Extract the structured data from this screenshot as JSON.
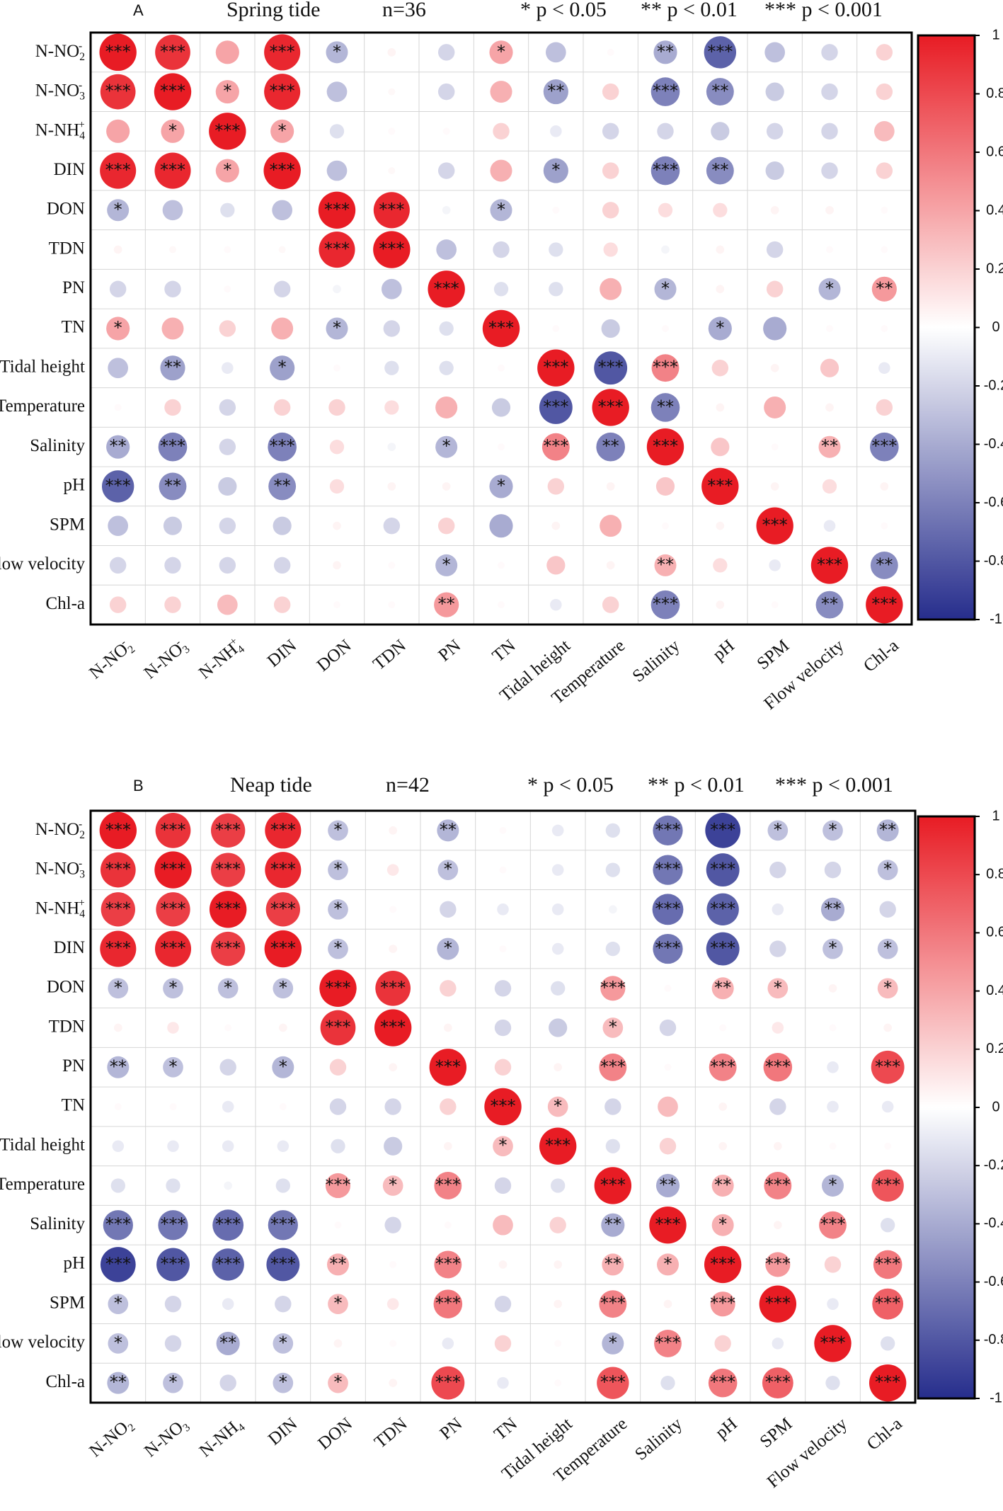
{
  "chart_data": [
    {
      "type": "heatmap",
      "panel": "A",
      "title": "Spring tide",
      "n_label": "n=36",
      "significance_legend": [
        "* p < 0.05",
        "** p < 0.01",
        "*** p < 0.001"
      ],
      "variables": [
        "N-NO2-",
        "N-NO3-",
        "N-NH4+",
        "DIN",
        "DON",
        "TDN",
        "PN",
        "TN",
        "Tidal height",
        "Temperature",
        "Salinity",
        "pH",
        "SPM",
        "Flow velocity",
        "Chl-a"
      ],
      "row_labels": [
        "N-NO2-",
        "N-NO3-",
        "N-NH4+",
        "DIN",
        "DON",
        "TDN",
        "PN",
        "TN",
        "Tidal height",
        "Temperature",
        "Salinity",
        "pH",
        "SPM",
        "Flow velocity",
        "Chl-a"
      ],
      "col_labels": [
        "N-NO2-",
        "N-NO3-",
        "N-NH4+",
        "DIN",
        "DON",
        "TDN",
        "PN",
        "TN",
        "Tidal height",
        "Temperature",
        "Salinity",
        "pH",
        "SPM",
        "Flow velocity",
        "Chl-a"
      ],
      "values": [
        [
          1,
          0.9,
          0.4,
          0.95,
          -0.35,
          0.05,
          -0.2,
          0.4,
          -0.3,
          0.02,
          -0.4,
          -0.75,
          -0.3,
          -0.2,
          0.2
        ],
        [
          0.9,
          1,
          0.4,
          0.95,
          -0.3,
          0.03,
          -0.2,
          0.35,
          -0.45,
          0.2,
          -0.6,
          -0.55,
          -0.25,
          -0.2,
          0.2
        ],
        [
          0.4,
          0.4,
          1,
          0.4,
          -0.15,
          0.02,
          0.02,
          0.2,
          -0.1,
          -0.2,
          -0.2,
          -0.25,
          -0.2,
          -0.2,
          0.3
        ],
        [
          0.95,
          0.95,
          0.4,
          1,
          -0.3,
          0.03,
          -0.2,
          0.35,
          -0.45,
          0.2,
          -0.6,
          -0.55,
          -0.25,
          -0.2,
          0.2
        ],
        [
          -0.35,
          -0.3,
          -0.15,
          -0.3,
          1,
          0.95,
          -0.05,
          -0.35,
          0.02,
          0.2,
          0.15,
          0.15,
          0.05,
          0.05,
          0.02
        ],
        [
          0.05,
          0.03,
          0.02,
          0.03,
          0.95,
          1,
          -0.3,
          -0.2,
          -0.15,
          0.15,
          -0.05,
          0.05,
          -0.2,
          0.02,
          0.02
        ],
        [
          -0.2,
          -0.2,
          0.02,
          -0.2,
          -0.05,
          -0.3,
          1,
          -0.15,
          -0.15,
          0.35,
          -0.35,
          0.05,
          0.2,
          -0.35,
          0.45
        ],
        [
          0.4,
          0.35,
          0.2,
          0.35,
          -0.35,
          -0.2,
          -0.15,
          1,
          0.02,
          -0.25,
          0.02,
          -0.4,
          -0.4,
          0.02,
          0.02
        ],
        [
          -0.3,
          -0.45,
          -0.1,
          -0.45,
          0.02,
          -0.15,
          -0.15,
          0.02,
          1,
          -0.8,
          0.55,
          0.2,
          0.05,
          0.25,
          -0.1
        ],
        [
          0.02,
          0.2,
          -0.2,
          0.2,
          0.2,
          0.15,
          0.35,
          -0.25,
          -0.8,
          1,
          -0.6,
          0.05,
          0.35,
          0.05,
          0.2
        ],
        [
          -0.4,
          -0.6,
          -0.2,
          -0.6,
          0.15,
          -0.05,
          -0.35,
          0.02,
          0.55,
          -0.6,
          1,
          0.25,
          0.02,
          0.35,
          -0.6
        ],
        [
          -0.75,
          -0.55,
          -0.25,
          -0.55,
          0.15,
          0.05,
          0.05,
          -0.4,
          0.2,
          0.05,
          0.25,
          1,
          0.05,
          0.15,
          0.05
        ],
        [
          -0.3,
          -0.25,
          -0.2,
          -0.25,
          0.05,
          -0.2,
          0.2,
          -0.4,
          0.05,
          0.35,
          0.02,
          0.05,
          1,
          -0.1,
          0.02
        ],
        [
          -0.2,
          -0.2,
          -0.2,
          -0.2,
          0.05,
          0.02,
          -0.35,
          0.02,
          0.25,
          0.05,
          0.35,
          0.15,
          -0.1,
          1,
          -0.55
        ],
        [
          0.2,
          0.2,
          0.3,
          0.2,
          0.02,
          0.02,
          0.45,
          0.02,
          -0.1,
          0.2,
          -0.6,
          0.05,
          0.02,
          -0.55,
          1
        ]
      ],
      "significance": [
        [
          "***",
          "***",
          "",
          "***",
          "*",
          "",
          "",
          "*",
          "",
          "",
          "**",
          "***",
          "",
          "",
          ""
        ],
        [
          "***",
          "***",
          "*",
          "***",
          "",
          "",
          "",
          "",
          "**",
          "",
          "***",
          "**",
          "",
          "",
          ""
        ],
        [
          "",
          "*",
          "***",
          "*",
          "",
          "",
          "",
          "",
          "",
          "",
          "",
          "",
          "",
          "",
          ""
        ],
        [
          "***",
          "***",
          "*",
          "***",
          "",
          "",
          "",
          "",
          "*",
          "",
          "***",
          "**",
          "",
          "",
          ""
        ],
        [
          "*",
          "",
          "",
          "",
          "***",
          "***",
          "",
          "*",
          "",
          "",
          "",
          "",
          "",
          "",
          ""
        ],
        [
          "",
          "",
          "",
          "",
          "***",
          "***",
          "",
          "",
          "",
          "",
          "",
          "",
          "",
          "",
          ""
        ],
        [
          "",
          "",
          "",
          "",
          "",
          "",
          "***",
          "",
          "",
          "",
          "*",
          "",
          "",
          "*",
          "**"
        ],
        [
          "*",
          "",
          "",
          "",
          "*",
          "",
          "",
          "***",
          "",
          "",
          "",
          "*",
          "",
          "",
          ""
        ],
        [
          "",
          "**",
          "",
          "*",
          "",
          "",
          "",
          "",
          "***",
          "***",
          "***",
          "",
          "",
          "",
          ""
        ],
        [
          "",
          "",
          "",
          "",
          "",
          "",
          "",
          "",
          "***",
          "***",
          "**",
          "",
          "",
          "",
          ""
        ],
        [
          "**",
          "***",
          "",
          "***",
          "",
          "",
          "*",
          "",
          "***",
          "**",
          "***",
          "",
          "",
          "**",
          "***"
        ],
        [
          "***",
          "**",
          "",
          "**",
          "",
          "",
          "",
          "*",
          "",
          "",
          "",
          "***",
          "",
          "",
          ""
        ],
        [
          "",
          "",
          "",
          "",
          "",
          "",
          "",
          "",
          "",
          "",
          "",
          "",
          "***",
          "",
          ""
        ],
        [
          "",
          "",
          "",
          "",
          "",
          "",
          "*",
          "",
          "",
          "",
          "**",
          "",
          "",
          "***",
          "**"
        ],
        [
          "",
          "",
          "",
          "",
          "",
          "",
          "**",
          "",
          "",
          "",
          "***",
          "",
          "",
          "**",
          "***"
        ]
      ],
      "colorbar": {
        "ticks": [
          "1",
          "0.8",
          "0.6",
          "0.4",
          "0.2",
          "0",
          "-0.2",
          "-0.4",
          "-0.6",
          "-0.8",
          "-1"
        ],
        "range": [
          -1,
          1
        ]
      }
    },
    {
      "type": "heatmap",
      "panel": "B",
      "title": "Neap tide",
      "n_label": "n=42",
      "significance_legend": [
        "* p < 0.05",
        "** p < 0.01",
        "*** p < 0.001"
      ],
      "row_labels": [
        "N-NO2-",
        "N-NO3-",
        "N-NH4+",
        "DIN",
        "DON",
        "TDN",
        "PN",
        "TN",
        "Tidal height",
        "Temperature",
        "Salinity",
        "pH",
        "SPM",
        "Flow velocity",
        "Chl-a"
      ],
      "col_labels": [
        "N-NO2",
        "N-NO3",
        "N-NH4",
        "DIN",
        "DON",
        "TDN",
        "PN",
        "TN",
        "Tidal height",
        "Temperature",
        "Salinity",
        "pH",
        "SPM",
        "Flow velocity",
        "Chl-a"
      ],
      "values": [
        [
          1,
          0.9,
          0.85,
          0.95,
          -0.3,
          0.05,
          -0.35,
          0.02,
          -0.1,
          -0.15,
          -0.65,
          -0.9,
          -0.3,
          -0.3,
          -0.35
        ],
        [
          0.9,
          1,
          0.85,
          0.95,
          -0.3,
          0.1,
          -0.3,
          0.02,
          -0.1,
          -0.15,
          -0.65,
          -0.8,
          -0.2,
          -0.2,
          -0.3
        ],
        [
          0.85,
          0.85,
          1,
          0.85,
          -0.3,
          0.02,
          -0.2,
          -0.1,
          -0.1,
          -0.05,
          -0.7,
          -0.75,
          -0.1,
          -0.4,
          -0.2
        ],
        [
          0.95,
          0.95,
          0.85,
          1,
          -0.3,
          0.05,
          -0.35,
          0.02,
          -0.1,
          -0.15,
          -0.65,
          -0.8,
          -0.2,
          -0.3,
          -0.3
        ],
        [
          -0.3,
          -0.3,
          -0.3,
          -0.3,
          1,
          0.9,
          0.2,
          -0.2,
          -0.15,
          0.45,
          0.02,
          0.35,
          0.3,
          0.05,
          0.3
        ],
        [
          0.05,
          0.1,
          0.02,
          0.05,
          0.9,
          1,
          0.05,
          -0.2,
          -0.25,
          0.3,
          -0.2,
          0.02,
          0.1,
          0.02,
          0.05
        ],
        [
          -0.35,
          -0.3,
          -0.2,
          -0.35,
          0.2,
          0.05,
          1,
          0.2,
          0.05,
          0.55,
          0.02,
          0.55,
          0.6,
          -0.1,
          0.8
        ],
        [
          0.02,
          0.02,
          -0.1,
          0.02,
          -0.2,
          -0.2,
          0.2,
          1,
          0.3,
          -0.2,
          0.3,
          0.05,
          -0.2,
          -0.1,
          -0.1
        ],
        [
          -0.1,
          -0.1,
          -0.1,
          -0.1,
          -0.15,
          -0.25,
          0.05,
          0.3,
          1,
          -0.15,
          0.2,
          0.05,
          0.05,
          0.02,
          0.02
        ],
        [
          -0.15,
          -0.15,
          -0.05,
          -0.15,
          0.45,
          0.3,
          0.55,
          -0.2,
          -0.15,
          1,
          -0.4,
          0.35,
          0.55,
          -0.35,
          0.75
        ],
        [
          -0.65,
          -0.65,
          -0.7,
          -0.65,
          0.02,
          -0.2,
          0.02,
          0.3,
          0.2,
          -0.4,
          1,
          0.35,
          0.05,
          0.55,
          -0.15
        ],
        [
          -0.9,
          -0.8,
          -0.75,
          -0.8,
          0.35,
          0.02,
          0.55,
          0.05,
          0.05,
          0.35,
          0.35,
          1,
          0.45,
          0.2,
          0.6
        ],
        [
          -0.3,
          -0.2,
          -0.1,
          -0.2,
          0.3,
          0.1,
          0.6,
          -0.2,
          0.05,
          0.55,
          0.05,
          0.45,
          1,
          -0.1,
          0.7
        ],
        [
          -0.3,
          -0.2,
          -0.4,
          -0.3,
          0.05,
          0.02,
          -0.1,
          0.2,
          0.02,
          -0.35,
          0.55,
          0.2,
          -0.1,
          1,
          -0.15
        ],
        [
          -0.35,
          -0.3,
          -0.2,
          -0.3,
          0.3,
          0.05,
          0.8,
          -0.1,
          0.02,
          0.75,
          -0.15,
          0.6,
          0.7,
          -0.15,
          1
        ]
      ],
      "significance": [
        [
          "***",
          "***",
          "***",
          "***",
          "*",
          "",
          "**",
          "",
          "",
          "",
          "***",
          "***",
          "*",
          "*",
          "**"
        ],
        [
          "***",
          "***",
          "***",
          "***",
          "*",
          "",
          "*",
          "",
          "",
          "",
          "***",
          "***",
          "",
          "",
          "*"
        ],
        [
          "***",
          "***",
          "***",
          "***",
          "*",
          "",
          "",
          "",
          "",
          "",
          "***",
          "***",
          "",
          "**",
          ""
        ],
        [
          "***",
          "***",
          "***",
          "***",
          "*",
          "",
          "*",
          "",
          "",
          "",
          "***",
          "***",
          "",
          "*",
          "*"
        ],
        [
          "*",
          "*",
          "*",
          "*",
          "***",
          "***",
          "",
          "",
          "",
          "***",
          "",
          "**",
          "*",
          "",
          "*"
        ],
        [
          "",
          "",
          "",
          "",
          "***",
          "***",
          "",
          "",
          "",
          "*",
          "",
          "",
          "",
          "",
          ""
        ],
        [
          "**",
          "*",
          "",
          "*",
          "",
          "",
          "***",
          "",
          "",
          "***",
          "",
          "***",
          "***",
          "",
          "***"
        ],
        [
          "",
          "",
          "",
          "",
          "",
          "",
          "",
          "***",
          "*",
          "",
          "",
          "",
          "",
          "",
          ""
        ],
        [
          "",
          "",
          "",
          "",
          "",
          "",
          "",
          "*",
          "***",
          "",
          "",
          "",
          "",
          "",
          ""
        ],
        [
          "",
          "",
          "",
          "",
          "***",
          "*",
          "***",
          "",
          "",
          "***",
          "**",
          "**",
          "***",
          "*",
          "***"
        ],
        [
          "***",
          "***",
          "***",
          "***",
          "",
          "",
          "",
          "",
          "",
          "**",
          "***",
          "*",
          "",
          "***",
          ""
        ],
        [
          "***",
          "***",
          "***",
          "***",
          "**",
          "",
          "***",
          "",
          "",
          "**",
          "*",
          "***",
          "***",
          "",
          "***"
        ],
        [
          "*",
          "",
          "",
          "",
          "*",
          "",
          "***",
          "",
          "",
          "***",
          "",
          "***",
          "***",
          "",
          "***"
        ],
        [
          "*",
          "",
          "**",
          "*",
          "",
          "",
          "",
          "",
          "",
          "*",
          "***",
          "",
          "",
          "***",
          ""
        ],
        [
          "**",
          "*",
          "",
          "*",
          "*",
          "",
          "***",
          "",
          "",
          "***",
          "",
          "***",
          "***",
          "",
          "***"
        ]
      ],
      "colorbar": {
        "ticks": [
          "1",
          "0.8",
          "0.6",
          "0.4",
          "0.2",
          "0",
          "-0.2",
          "-0.4",
          "-0.6",
          "-0.8",
          "-1"
        ],
        "range": [
          -1,
          1
        ]
      }
    }
  ]
}
